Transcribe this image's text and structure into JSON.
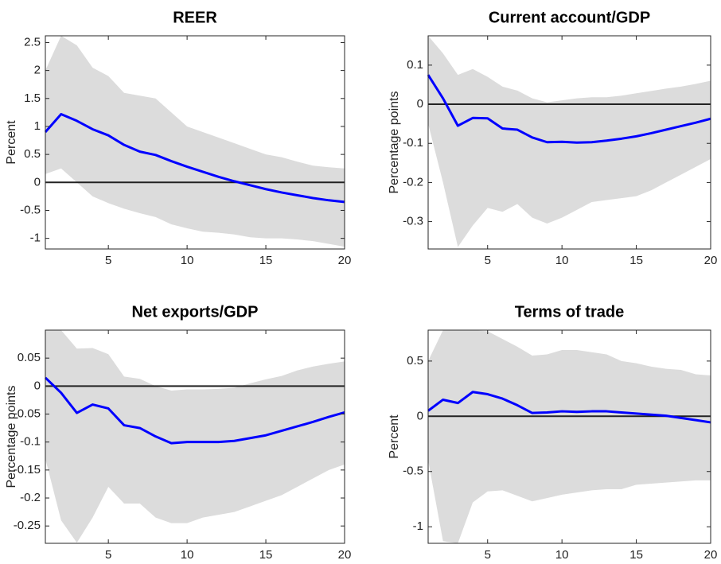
{
  "chart_data": [
    {
      "type": "line",
      "title": "REER",
      "ylabel": "Percent",
      "x": [
        1,
        2,
        3,
        4,
        5,
        6,
        7,
        8,
        9,
        10,
        11,
        12,
        13,
        14,
        15,
        16,
        17,
        18,
        19,
        20
      ],
      "series": [
        {
          "color": "#0000ff",
          "values": [
            0.9,
            1.22,
            1.1,
            0.95,
            0.84,
            0.67,
            0.55,
            0.49,
            0.38,
            0.28,
            0.19,
            0.1,
            0.02,
            -0.05,
            -0.12,
            -0.18,
            -0.23,
            -0.28,
            -0.32,
            -0.35
          ]
        }
      ],
      "band": {
        "color": "#dcdcdc",
        "upper": [
          2.0,
          2.62,
          2.45,
          2.05,
          1.9,
          1.6,
          1.55,
          1.5,
          1.25,
          1.0,
          0.9,
          0.8,
          0.7,
          0.6,
          0.5,
          0.45,
          0.37,
          0.3,
          0.27,
          0.25
        ],
        "lower": [
          0.15,
          0.25,
          0.0,
          -0.25,
          -0.37,
          -0.47,
          -0.55,
          -0.62,
          -0.75,
          -0.82,
          -0.88,
          -0.9,
          -0.93,
          -0.98,
          -1.0,
          -1.0,
          -1.02,
          -1.05,
          -1.1,
          -1.15
        ]
      },
      "xlim": [
        1,
        20
      ],
      "xticks": [
        5,
        10,
        15,
        20
      ],
      "ylim": [
        -1.19,
        2.62
      ],
      "yticks": [
        -1,
        -0.5,
        0,
        0.5,
        1,
        1.5,
        2,
        2.5
      ]
    },
    {
      "type": "line",
      "title": "Current account/GDP",
      "ylabel": "Percentage points",
      "x": [
        1,
        2,
        3,
        4,
        5,
        6,
        7,
        8,
        9,
        10,
        11,
        12,
        13,
        14,
        15,
        16,
        17,
        18,
        19,
        20
      ],
      "series": [
        {
          "color": "#0000ff",
          "values": [
            0.075,
            0.015,
            -0.055,
            -0.035,
            -0.036,
            -0.062,
            -0.065,
            -0.085,
            -0.097,
            -0.096,
            -0.098,
            -0.097,
            -0.093,
            -0.088,
            -0.082,
            -0.074,
            -0.065,
            -0.056,
            -0.047,
            -0.037
          ]
        }
      ],
      "band": {
        "color": "#dcdcdc",
        "upper": [
          0.175,
          0.13,
          0.075,
          0.09,
          0.07,
          0.045,
          0.035,
          0.015,
          0.005,
          0.01,
          0.015,
          0.018,
          0.018,
          0.022,
          0.028,
          0.034,
          0.04,
          0.045,
          0.052,
          0.06
        ],
        "lower": [
          -0.05,
          -0.2,
          -0.365,
          -0.31,
          -0.265,
          -0.275,
          -0.255,
          -0.29,
          -0.305,
          -0.29,
          -0.27,
          -0.25,
          -0.245,
          -0.24,
          -0.235,
          -0.22,
          -0.2,
          -0.18,
          -0.16,
          -0.14
        ]
      },
      "xlim": [
        1,
        20
      ],
      "xticks": [
        5,
        10,
        15,
        20
      ],
      "ylim": [
        -0.37,
        0.175
      ],
      "yticks": [
        -0.3,
        -0.2,
        -0.1,
        0,
        0.1
      ]
    },
    {
      "type": "line",
      "title": "Net exports/GDP",
      "ylabel": "Percentage points",
      "x": [
        1,
        2,
        3,
        4,
        5,
        6,
        7,
        8,
        9,
        10,
        11,
        12,
        13,
        14,
        15,
        16,
        17,
        18,
        19,
        20
      ],
      "series": [
        {
          "color": "#0000ff",
          "values": [
            0.015,
            -0.012,
            -0.048,
            -0.033,
            -0.04,
            -0.07,
            -0.075,
            -0.09,
            -0.102,
            -0.1,
            -0.1,
            -0.1,
            -0.098,
            -0.093,
            -0.088,
            -0.08,
            -0.072,
            -0.064,
            -0.055,
            -0.047
          ]
        }
      ],
      "band": {
        "color": "#dcdcdc",
        "upper": [
          0.1,
          0.1,
          0.067,
          0.068,
          0.057,
          0.017,
          0.013,
          0.0,
          -0.008,
          -0.006,
          -0.006,
          -0.005,
          -0.003,
          0.005,
          0.012,
          0.018,
          0.028,
          0.035,
          0.04,
          0.044
        ],
        "lower": [
          -0.13,
          -0.24,
          -0.28,
          -0.235,
          -0.18,
          -0.21,
          -0.21,
          -0.235,
          -0.245,
          -0.245,
          -0.235,
          -0.23,
          -0.225,
          -0.215,
          -0.205,
          -0.195,
          -0.18,
          -0.165,
          -0.15,
          -0.14
        ]
      },
      "xlim": [
        1,
        20
      ],
      "xticks": [
        5,
        10,
        15,
        20
      ],
      "ylim": [
        -0.281,
        0.1
      ],
      "yticks": [
        -0.25,
        -0.2,
        -0.15,
        -0.1,
        -0.05,
        0,
        0.05
      ]
    },
    {
      "type": "line",
      "title": "Terms of trade",
      "ylabel": "Percent",
      "x": [
        1,
        2,
        3,
        4,
        5,
        6,
        7,
        8,
        9,
        10,
        11,
        12,
        13,
        14,
        15,
        16,
        17,
        18,
        19,
        20
      ],
      "series": [
        {
          "color": "#0000ff",
          "values": [
            0.05,
            0.15,
            0.12,
            0.22,
            0.2,
            0.16,
            0.1,
            0.03,
            0.035,
            0.045,
            0.04,
            0.045,
            0.045,
            0.035,
            0.025,
            0.015,
            0.005,
            -0.015,
            -0.035,
            -0.055
          ]
        }
      ],
      "band": {
        "color": "#dcdcdc",
        "upper": [
          0.5,
          0.78,
          0.78,
          0.78,
          0.77,
          0.7,
          0.63,
          0.55,
          0.56,
          0.6,
          0.6,
          0.58,
          0.56,
          0.5,
          0.48,
          0.45,
          0.43,
          0.42,
          0.38,
          0.37
        ],
        "lower": [
          -0.4,
          -1.13,
          -1.15,
          -0.78,
          -0.68,
          -0.67,
          -0.72,
          -0.77,
          -0.74,
          -0.71,
          -0.69,
          -0.67,
          -0.66,
          -0.66,
          -0.62,
          -0.61,
          -0.6,
          -0.59,
          -0.58,
          -0.58
        ]
      },
      "xlim": [
        1,
        20
      ],
      "xticks": [
        5,
        10,
        15,
        20
      ],
      "ylim": [
        -1.15,
        0.78
      ],
      "yticks": [
        -1,
        -0.5,
        0,
        0.5
      ]
    }
  ]
}
